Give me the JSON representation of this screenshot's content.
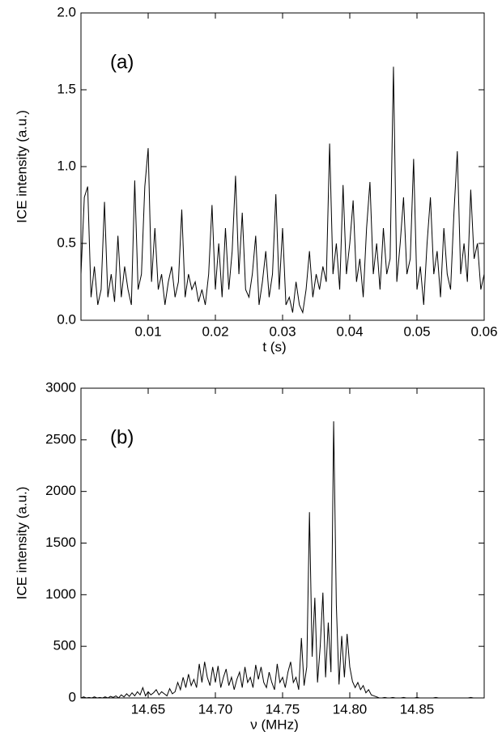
{
  "chart_data": [
    {
      "type": "line",
      "annotation": "(a)",
      "x_label": "t (s)",
      "y_label": "ICE intensity (a.u.)",
      "color": "#000000",
      "xlim": [
        0,
        0.06
      ],
      "ylim": [
        0,
        2
      ],
      "xticks": [
        0.01,
        0.02,
        0.03,
        0.04,
        0.05,
        0.06
      ],
      "yticks": [
        {
          "value": 0,
          "label": "0.0"
        },
        0.5,
        {
          "value": 1,
          "label": "1.0"
        },
        1.5,
        {
          "value": 2,
          "label": "2.0"
        }
      ],
      "x": [
        0,
        0.0005,
        0.001,
        0.0015,
        0.002,
        0.0025,
        0.003,
        0.0035,
        0.004,
        0.0045,
        0.005,
        0.0055,
        0.006,
        0.0065,
        0.007,
        0.0075,
        0.008,
        0.0085,
        0.009,
        0.0095,
        0.01,
        0.0105,
        0.011,
        0.0115,
        0.012,
        0.0125,
        0.013,
        0.0135,
        0.014,
        0.0145,
        0.015,
        0.0155,
        0.016,
        0.0165,
        0.017,
        0.0175,
        0.018,
        0.0185,
        0.019,
        0.0195,
        0.02,
        0.0205,
        0.021,
        0.0215,
        0.022,
        0.0225,
        0.023,
        0.0235,
        0.024,
        0.0245,
        0.025,
        0.0255,
        0.026,
        0.0265,
        0.027,
        0.0275,
        0.028,
        0.0285,
        0.029,
        0.0295,
        0.03,
        0.0305,
        0.031,
        0.0315,
        0.032,
        0.0325,
        0.033,
        0.0335,
        0.034,
        0.0345,
        0.035,
        0.0355,
        0.036,
        0.0365,
        0.037,
        0.0375,
        0.038,
        0.0385,
        0.039,
        0.0395,
        0.04,
        0.0405,
        0.041,
        0.0415,
        0.042,
        0.0425,
        0.043,
        0.0435,
        0.044,
        0.0445,
        0.045,
        0.0455,
        0.046,
        0.0465,
        0.047,
        0.0475,
        0.048,
        0.0485,
        0.049,
        0.0495,
        0.05,
        0.0505,
        0.051,
        0.0515,
        0.052,
        0.0525,
        0.053,
        0.0535,
        0.054,
        0.0545,
        0.055,
        0.0555,
        0.056,
        0.0565,
        0.057,
        0.0575,
        0.058,
        0.0585,
        0.059,
        0.0595,
        0.06
      ],
      "values": [
        0.3,
        0.8,
        0.87,
        0.15,
        0.35,
        0.1,
        0.2,
        0.77,
        0.15,
        0.3,
        0.12,
        0.55,
        0.15,
        0.35,
        0.2,
        0.1,
        0.91,
        0.2,
        0.3,
        0.87,
        1.12,
        0.25,
        0.6,
        0.2,
        0.3,
        0.1,
        0.25,
        0.35,
        0.15,
        0.25,
        0.72,
        0.15,
        0.3,
        0.2,
        0.25,
        0.12,
        0.2,
        0.1,
        0.3,
        0.75,
        0.2,
        0.5,
        0.15,
        0.6,
        0.2,
        0.45,
        0.94,
        0.3,
        0.7,
        0.2,
        0.15,
        0.3,
        0.55,
        0.1,
        0.25,
        0.45,
        0.15,
        0.3,
        0.82,
        0.2,
        0.6,
        0.1,
        0.15,
        0.05,
        0.25,
        0.1,
        0.05,
        0.2,
        0.45,
        0.15,
        0.3,
        0.2,
        0.35,
        0.25,
        1.15,
        0.3,
        0.5,
        0.2,
        0.88,
        0.3,
        0.5,
        0.78,
        0.25,
        0.4,
        0.15,
        0.6,
        0.9,
        0.3,
        0.5,
        0.2,
        0.6,
        0.3,
        0.4,
        1.65,
        0.25,
        0.5,
        0.8,
        0.3,
        0.4,
        1.05,
        0.2,
        0.35,
        0.1,
        0.5,
        0.8,
        0.3,
        0.45,
        0.15,
        0.6,
        0.3,
        0.2,
        0.7,
        1.1,
        0.3,
        0.5,
        0.25,
        0.85,
        0.4,
        0.5,
        0.2,
        0.3
      ]
    },
    {
      "type": "line",
      "annotation": "(b)",
      "x_label": "ν (MHz)",
      "y_label": "ICE intensity (a.u.)",
      "color": "#000000",
      "xlim": [
        14.6,
        14.9
      ],
      "ylim": [
        0,
        3000
      ],
      "xticks": [
        14.65,
        {
          "value": 14.7,
          "label": "14.70"
        },
        14.75,
        {
          "value": 14.8,
          "label": "14.80"
        },
        14.85
      ],
      "yticks": [
        0,
        500,
        1000,
        1500,
        2000,
        2500,
        3000
      ],
      "x": [
        14.6,
        14.602,
        14.604,
        14.606,
        14.608,
        14.61,
        14.612,
        14.614,
        14.616,
        14.618,
        14.62,
        14.622,
        14.624,
        14.626,
        14.628,
        14.63,
        14.632,
        14.634,
        14.636,
        14.638,
        14.64,
        14.642,
        14.644,
        14.646,
        14.648,
        14.65,
        14.652,
        14.654,
        14.656,
        14.658,
        14.66,
        14.662,
        14.664,
        14.666,
        14.668,
        14.67,
        14.672,
        14.674,
        14.676,
        14.678,
        14.68,
        14.682,
        14.684,
        14.686,
        14.688,
        14.69,
        14.692,
        14.694,
        14.696,
        14.698,
        14.7,
        14.702,
        14.704,
        14.706,
        14.708,
        14.71,
        14.712,
        14.714,
        14.716,
        14.718,
        14.72,
        14.722,
        14.724,
        14.726,
        14.728,
        14.73,
        14.732,
        14.734,
        14.736,
        14.738,
        14.74,
        14.742,
        14.744,
        14.746,
        14.748,
        14.75,
        14.752,
        14.754,
        14.756,
        14.758,
        14.76,
        14.762,
        14.764,
        14.766,
        14.768,
        14.77,
        14.772,
        14.774,
        14.776,
        14.778,
        14.78,
        14.782,
        14.784,
        14.786,
        14.788,
        14.79,
        14.792,
        14.794,
        14.796,
        14.798,
        14.8,
        14.802,
        14.804,
        14.806,
        14.808,
        14.81,
        14.812,
        14.814,
        14.816,
        14.818,
        14.82,
        14.822,
        14.824,
        14.826,
        14.828,
        14.83,
        14.832,
        14.834,
        14.836,
        14.838,
        14.84,
        14.842,
        14.844,
        14.846,
        14.848,
        14.85,
        14.852,
        14.854,
        14.856,
        14.858,
        14.86,
        14.862,
        14.864,
        14.866,
        14.868,
        14.87,
        14.872,
        14.874,
        14.876,
        14.878,
        14.88,
        14.882,
        14.884,
        14.886,
        14.888,
        14.89,
        14.892,
        14.894,
        14.896,
        14.898,
        14.9
      ],
      "values": [
        0,
        10,
        0,
        5,
        0,
        10,
        0,
        5,
        0,
        10,
        0,
        15,
        5,
        20,
        0,
        30,
        10,
        40,
        15,
        50,
        20,
        60,
        30,
        100,
        20,
        60,
        30,
        50,
        80,
        30,
        60,
        40,
        20,
        90,
        40,
        60,
        150,
        80,
        200,
        100,
        230,
        120,
        180,
        100,
        330,
        150,
        350,
        200,
        120,
        300,
        150,
        310,
        100,
        200,
        280,
        120,
        200,
        80,
        180,
        250,
        100,
        300,
        150,
        200,
        100,
        320,
        180,
        300,
        150,
        100,
        250,
        150,
        80,
        330,
        150,
        200,
        100,
        250,
        350,
        150,
        200,
        80,
        580,
        120,
        300,
        1800,
        400,
        970,
        150,
        500,
        1020,
        200,
        730,
        250,
        2680,
        900,
        130,
        600,
        200,
        620,
        300,
        160,
        100,
        150,
        80,
        120,
        50,
        80,
        30,
        20,
        10,
        0,
        0,
        5,
        0,
        0,
        5,
        0,
        0,
        0,
        5,
        0,
        0,
        0,
        0,
        5,
        0,
        0,
        0,
        0,
        0,
        0,
        5,
        0,
        0,
        0,
        0,
        0,
        0,
        0,
        0,
        0,
        0,
        0,
        0,
        5,
        0,
        0,
        0,
        0,
        0
      ]
    }
  ]
}
